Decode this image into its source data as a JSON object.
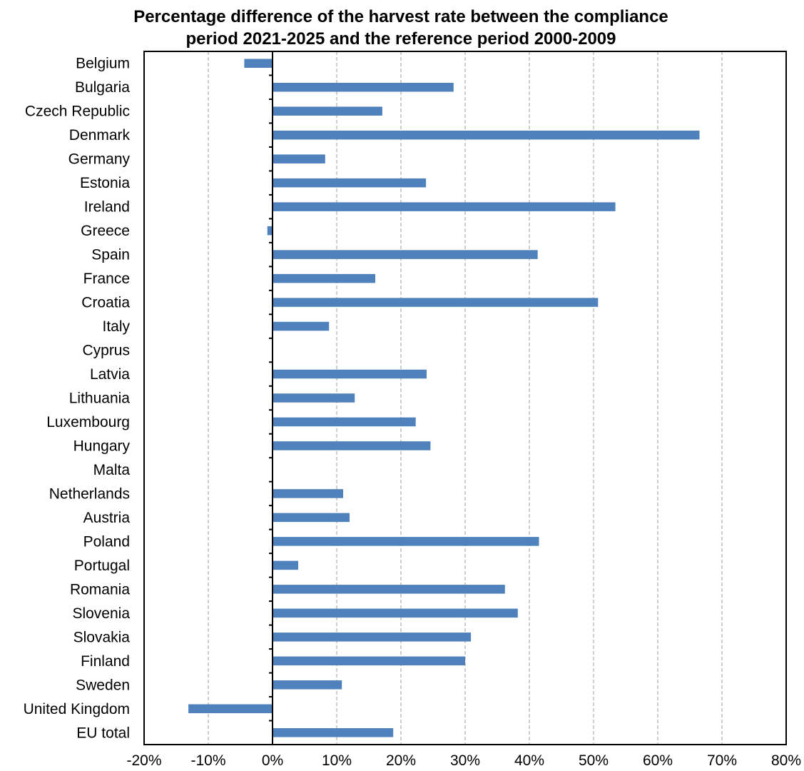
{
  "chart_data": {
    "type": "bar",
    "orientation": "horizontal",
    "title_lines": [
      "Percentage difference of the harvest rate between the compliance",
      "period 2021-2025 and the reference period 2000-2009"
    ],
    "xlabel": "",
    "ylabel": "",
    "categories": [
      "Belgium",
      "Bulgaria",
      "Czech Republic",
      "Denmark",
      "Germany",
      "Estonia",
      "Ireland",
      "Greece",
      "Spain",
      "France",
      "Croatia",
      "Italy",
      "Cyprus",
      "Latvia",
      "Lithuania",
      "Luxembourg",
      "Hungary",
      "Malta",
      "Netherlands",
      "Austria",
      "Poland",
      "Portugal",
      "Romania",
      "Slovenia",
      "Slovakia",
      "Finland",
      "Sweden",
      "United Kingdom",
      "EU total"
    ],
    "values": [
      -4.4,
      28.2,
      17.1,
      66.5,
      8.2,
      23.9,
      53.4,
      -0.8,
      41.3,
      16.0,
      50.7,
      8.8,
      0.0,
      24.0,
      12.8,
      22.3,
      24.6,
      0.0,
      11.0,
      12.0,
      41.5,
      4.0,
      36.2,
      38.2,
      30.9,
      30.0,
      10.8,
      -13.1,
      18.8
    ],
    "xlim": [
      -20,
      80
    ],
    "xticks": [
      -20,
      -10,
      0,
      10,
      20,
      30,
      40,
      50,
      60,
      70,
      80
    ],
    "xtick_labels": [
      "-20%",
      "-10%",
      "0%",
      "10%",
      "20%",
      "30%",
      "40%",
      "50%",
      "60%",
      "70%",
      "80%"
    ],
    "grid": "vertical dashed",
    "legend": "none",
    "bar_color": "#4F81BD"
  }
}
